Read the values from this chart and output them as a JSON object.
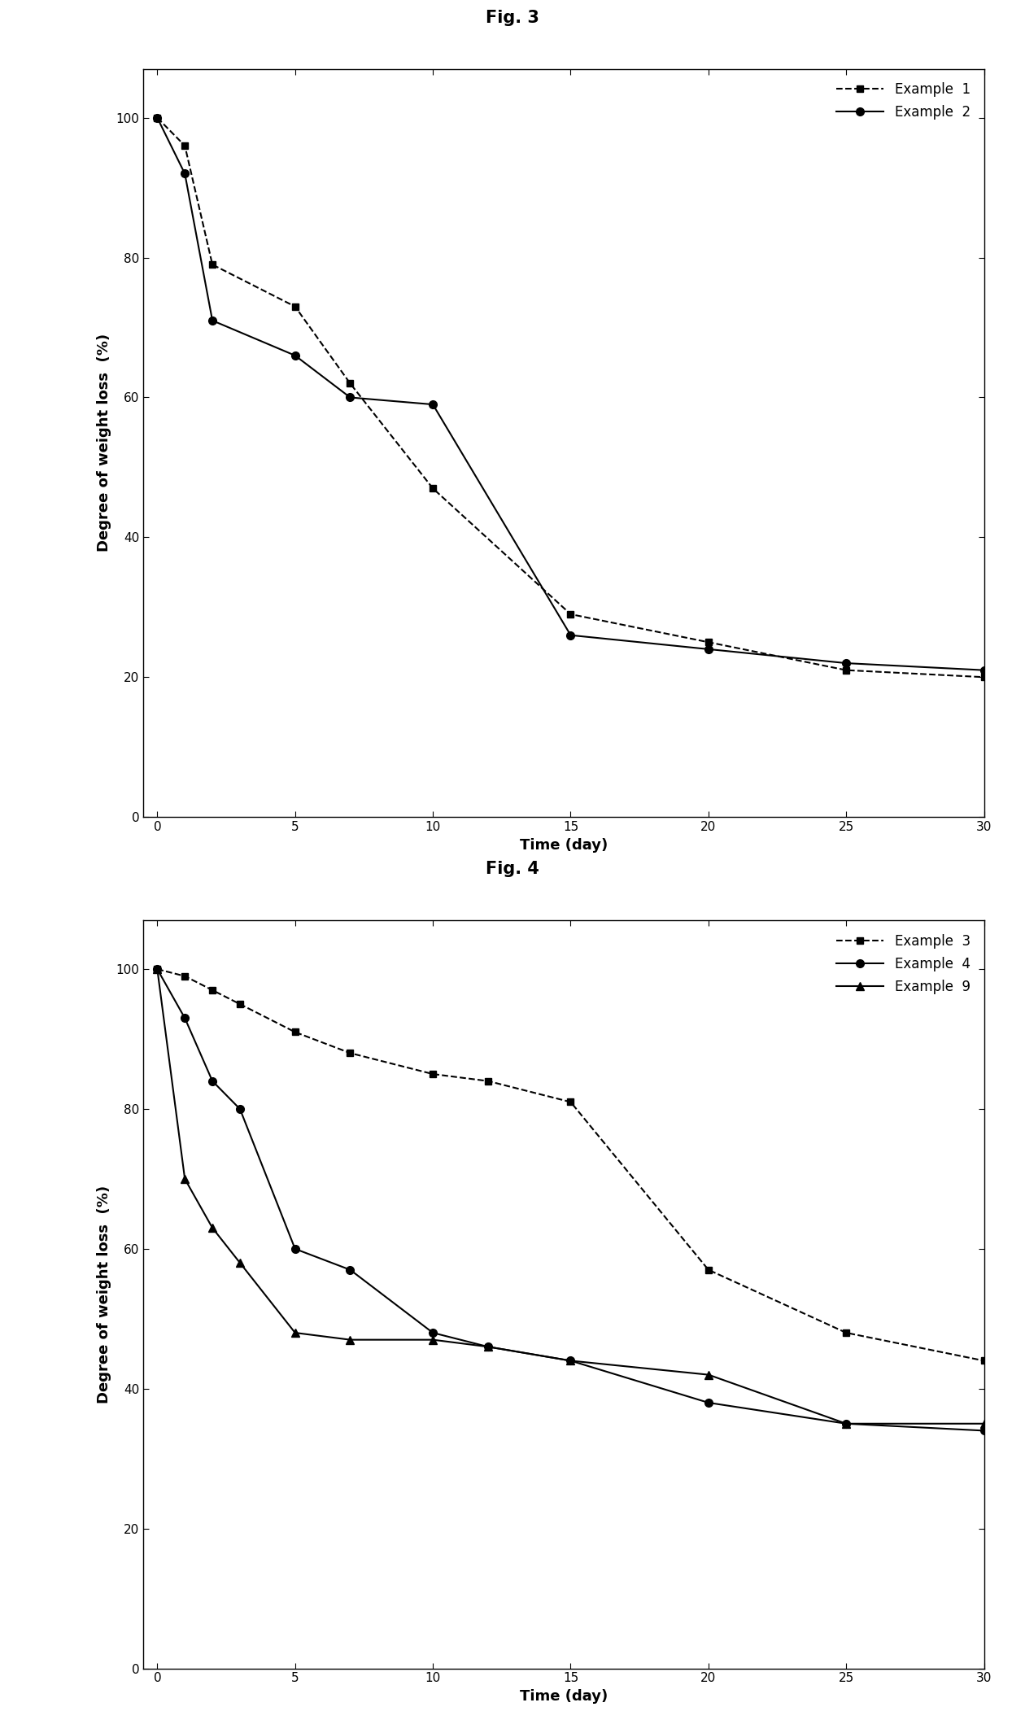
{
  "fig3_title": "Fig. 3",
  "fig4_title": "Fig. 4",
  "fig3_example1_x": [
    0,
    1,
    2,
    5,
    7,
    10,
    15,
    20,
    25,
    30
  ],
  "fig3_example1_y": [
    100,
    96,
    79,
    73,
    62,
    47,
    29,
    25,
    21,
    20
  ],
  "fig3_example2_x": [
    0,
    1,
    2,
    5,
    7,
    10,
    15,
    20,
    25,
    30
  ],
  "fig3_example2_y": [
    100,
    92,
    71,
    66,
    60,
    59,
    26,
    24,
    22,
    21
  ],
  "fig4_example3_x": [
    0,
    1,
    2,
    3,
    5,
    7,
    10,
    12,
    15,
    20,
    25,
    30
  ],
  "fig4_example3_y": [
    100,
    99,
    97,
    95,
    91,
    88,
    85,
    84,
    81,
    57,
    48,
    44
  ],
  "fig4_example4_x": [
    0,
    1,
    2,
    3,
    5,
    7,
    10,
    12,
    15,
    20,
    25,
    30
  ],
  "fig4_example4_y": [
    100,
    93,
    84,
    80,
    60,
    57,
    48,
    46,
    44,
    38,
    35,
    34
  ],
  "fig4_example9_x": [
    0,
    1,
    2,
    3,
    5,
    7,
    10,
    12,
    15,
    20,
    25,
    30
  ],
  "fig4_example9_y": [
    100,
    70,
    63,
    58,
    48,
    47,
    47,
    46,
    44,
    42,
    35,
    35
  ],
  "ylabel": "Degree of weight loss  (%)",
  "xlabel": "Time (day)",
  "line_color": "#000000",
  "bg_color": "#ffffff",
  "title_fontsize": 15,
  "label_fontsize": 13,
  "tick_fontsize": 11,
  "legend_fontsize": 12
}
